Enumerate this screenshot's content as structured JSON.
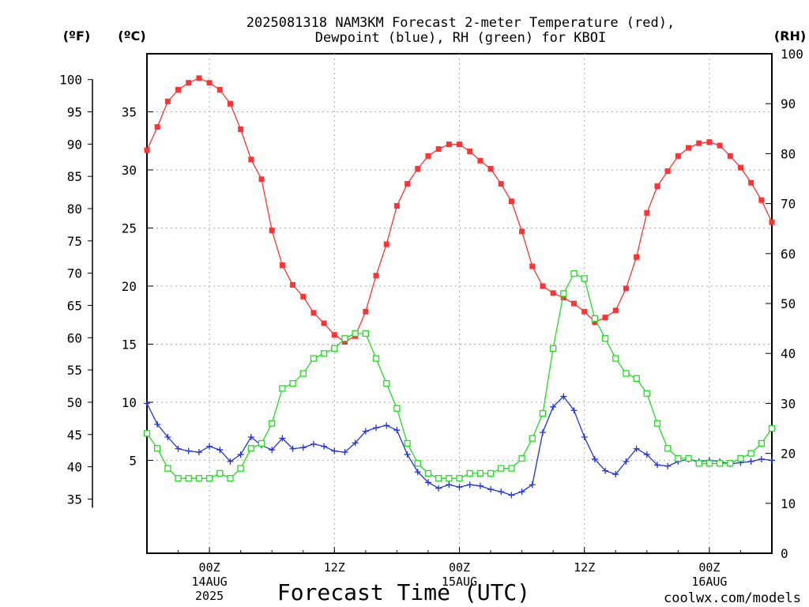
{
  "header": {
    "title_line1": "2025081318 NAM3KM Forecast 2-meter Temperature (red),",
    "title_line2": "Dewpoint (blue), RH (green) for KBOI",
    "unit_f": "(ºF)",
    "unit_c": "(ºC)",
    "unit_rh": "(RH)"
  },
  "footer": {
    "xlabel": "Forecast Time (UTC)",
    "credit": "coolwx.com/models"
  },
  "colors": {
    "temperature": "#ff3333",
    "dewpoint": "#2233dd",
    "rh": "#22dd22",
    "grid": "#aaaaaa",
    "credit": "#cc2222"
  },
  "chart_data": {
    "type": "line",
    "x_unit": "forecast hour since 2025-08-13 18Z",
    "x_range": [
      0,
      60
    ],
    "x_ticks": [
      {
        "x": 6,
        "lines": [
          "00Z",
          "14AUG",
          "2025"
        ]
      },
      {
        "x": 18,
        "lines": [
          "12Z"
        ]
      },
      {
        "x": 30,
        "lines": [
          "00Z",
          "15AUG"
        ]
      },
      {
        "x": 42,
        "lines": [
          "12Z"
        ]
      },
      {
        "x": 54,
        "lines": [
          "00Z",
          "16AUG"
        ]
      }
    ],
    "y_c_range": [
      -3,
      40
    ],
    "y_c_ticks": [
      5,
      10,
      15,
      20,
      25,
      30,
      35
    ],
    "y_f_ticks": [
      35,
      40,
      45,
      50,
      55,
      60,
      65,
      70,
      75,
      80,
      85,
      90,
      95,
      100
    ],
    "y_rh_range": [
      0,
      100
    ],
    "y_rh_ticks": [
      0,
      10,
      20,
      30,
      40,
      50,
      60,
      70,
      80,
      90,
      100
    ],
    "grid": true,
    "series": [
      {
        "name": "Temperature",
        "axis": "celsius",
        "marker": "filled-square",
        "x": [
          0,
          1,
          2,
          3,
          4,
          5,
          6,
          7,
          8,
          9,
          10,
          11,
          12,
          13,
          14,
          15,
          16,
          17,
          18,
          19,
          20,
          21,
          22,
          23,
          24,
          25,
          26,
          27,
          28,
          29,
          30,
          31,
          32,
          33,
          34,
          35,
          36,
          37,
          38,
          39,
          40,
          41,
          42,
          43,
          44,
          45,
          46,
          47,
          48,
          49,
          50,
          51,
          52,
          53,
          54,
          55,
          56,
          57,
          58,
          59,
          60
        ],
        "values": [
          31.7,
          33.7,
          35.9,
          36.9,
          37.5,
          37.9,
          37.5,
          36.9,
          35.7,
          33.5,
          30.9,
          29.2,
          24.8,
          21.8,
          20.1,
          19.1,
          17.7,
          16.8,
          15.8,
          15.2,
          15.7,
          17.8,
          20.9,
          23.6,
          26.9,
          28.8,
          30.1,
          31.2,
          31.8,
          32.2,
          32.2,
          31.6,
          30.8,
          30.1,
          28.8,
          27.3,
          24.7,
          21.7,
          20.0,
          19.4,
          19.0,
          18.5,
          17.8,
          16.9,
          17.3,
          17.9,
          19.8,
          22.5,
          26.3,
          28.6,
          29.9,
          31.2,
          31.9,
          32.3,
          32.4,
          32.1,
          31.2,
          30.2,
          28.9,
          27.4,
          25.5
        ]
      },
      {
        "name": "Dewpoint",
        "axis": "celsius",
        "marker": "plus",
        "x": [
          0,
          1,
          2,
          3,
          4,
          5,
          6,
          7,
          8,
          9,
          10,
          11,
          12,
          13,
          14,
          15,
          16,
          17,
          18,
          19,
          20,
          21,
          22,
          23,
          24,
          25,
          26,
          27,
          28,
          29,
          30,
          31,
          32,
          33,
          34,
          35,
          36,
          37,
          38,
          39,
          40,
          41,
          42,
          43,
          44,
          45,
          46,
          47,
          48,
          49,
          50,
          51,
          52,
          53,
          54,
          55,
          56,
          57,
          58,
          59,
          60
        ],
        "values": [
          9.9,
          8.1,
          7.0,
          6.0,
          5.8,
          5.7,
          6.2,
          5.9,
          4.9,
          5.5,
          7.0,
          6.3,
          5.9,
          6.9,
          6.0,
          6.1,
          6.4,
          6.2,
          5.8,
          5.7,
          6.5,
          7.5,
          7.8,
          8.0,
          7.6,
          5.5,
          4.0,
          3.1,
          2.6,
          2.9,
          2.7,
          2.9,
          2.8,
          2.5,
          2.3,
          2.0,
          2.3,
          2.9,
          7.4,
          9.6,
          10.5,
          9.3,
          7.0,
          5.1,
          4.1,
          3.8,
          4.9,
          6.0,
          5.5,
          4.6,
          4.5,
          4.9,
          5.1,
          4.9,
          5.0,
          4.9,
          4.7,
          4.8,
          4.9,
          5.1,
          5.0
        ]
      },
      {
        "name": "RH",
        "axis": "rh",
        "marker": "open-square",
        "x": [
          0,
          1,
          2,
          3,
          4,
          5,
          6,
          7,
          8,
          9,
          10,
          11,
          12,
          13,
          14,
          15,
          16,
          17,
          18,
          19,
          20,
          21,
          22,
          23,
          24,
          25,
          26,
          27,
          28,
          29,
          30,
          31,
          32,
          33,
          34,
          35,
          36,
          37,
          38,
          39,
          40,
          41,
          42,
          43,
          44,
          45,
          46,
          47,
          48,
          49,
          50,
          51,
          52,
          53,
          54,
          55,
          56,
          57,
          58,
          59,
          60
        ],
        "values": [
          24,
          21,
          17,
          15,
          15,
          15,
          15,
          16,
          15,
          17,
          21,
          22,
          26,
          33,
          34,
          36,
          39,
          40,
          41,
          43,
          44,
          44,
          39,
          34,
          29,
          22,
          18,
          16,
          15,
          15,
          15,
          16,
          16,
          16,
          17,
          17,
          19,
          23,
          28,
          41,
          52,
          56,
          55,
          47,
          43,
          39,
          36,
          35,
          32,
          26,
          21,
          19,
          19,
          18,
          18,
          18,
          18,
          19,
          20,
          22,
          25
        ]
      }
    ]
  }
}
